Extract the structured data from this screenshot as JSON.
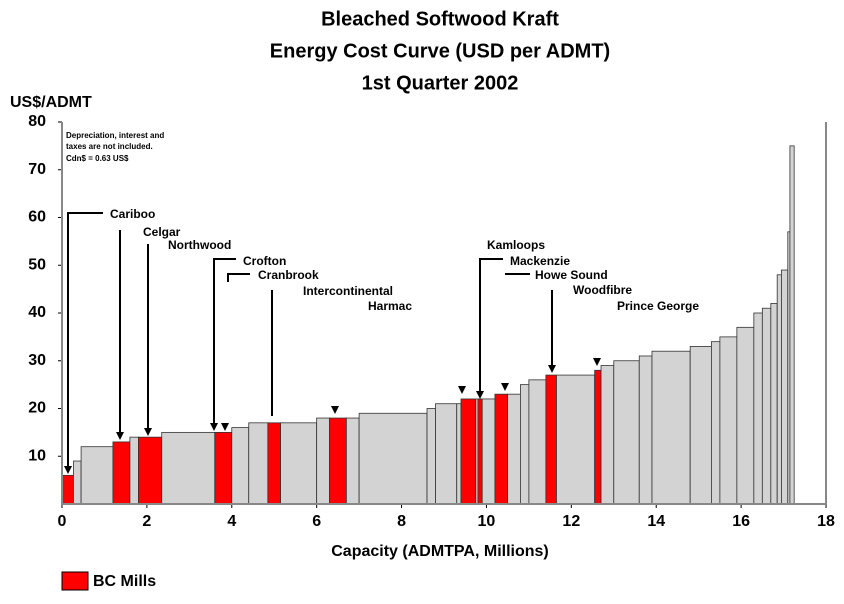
{
  "chart_data": {
    "type": "cost-curve",
    "title": [
      "Bleached Softwood Kraft",
      "Energy Cost Curve (USD per ADMT)",
      "1st Quarter 2002"
    ],
    "y_label": "US$/ADMT",
    "x_label": "Capacity (ADMTPA, Millions)",
    "note": [
      "Depreciation, interest and",
      "taxes are not included.",
      "Cdn$ = 0.63 US$"
    ],
    "widths": [
      0.27,
      0.18,
      0.75,
      0.4,
      0.2,
      0.55,
      1.25,
      0.4,
      0.4,
      0.45,
      0.3,
      0.85,
      0.3,
      0.4,
      0.3,
      1.6,
      0.2,
      0.5,
      0.1,
      0.35,
      0.05,
      0.1,
      0.3,
      0.3,
      0.3,
      0.2,
      0.4,
      0.25,
      0.9,
      0.15,
      0.3,
      0.6,
      0.3,
      0.9,
      0.5,
      0.2,
      0.4,
      0.4,
      0.2,
      0.2,
      0.15,
      0.1,
      0.15,
      0.05,
      0.1
    ],
    "values": [
      6,
      9,
      12,
      13,
      14,
      14,
      15,
      15,
      16,
      17,
      17,
      17,
      18,
      18,
      18,
      19,
      20,
      21,
      21,
      22,
      22,
      22,
      22,
      23,
      23,
      25,
      26,
      27,
      27,
      28,
      29,
      30,
      31,
      32,
      33,
      34,
      35,
      37,
      40,
      41,
      42,
      48,
      49,
      57,
      75
    ],
    "color": "#d3d3d3",
    "highlight": [
      0,
      3,
      5,
      7,
      10,
      13,
      19,
      21,
      23,
      27,
      29
    ],
    "highlight_name": "BC Mills",
    "highlight_color": "#ff0000",
    "annotations": [
      "Cariboo",
      "Celgar",
      "Northwood",
      "Crofton",
      "Cranbrook",
      "Intercontinental",
      "Harmac",
      "Kamloops",
      "Mackenzie",
      "Howe Sound",
      "Woodfibre",
      "Prince George"
    ],
    "xlim": [
      0,
      18
    ],
    "xticks": [
      0,
      2,
      4,
      6,
      8,
      10,
      12,
      14,
      16,
      18
    ],
    "ylim": [
      0,
      80
    ],
    "yticks": [
      10,
      20,
      30,
      40,
      50,
      60,
      70,
      80
    ]
  }
}
